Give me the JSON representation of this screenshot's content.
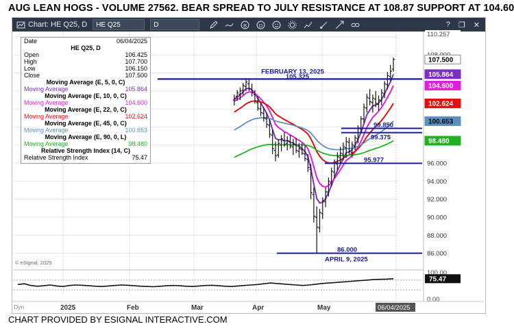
{
  "headline": "AUG LEAN HOGS -  VOLUME 27562.  BEAR SPREAD TO JULY RESISTANCE AT 108.87  SUPPORT AT 104.60",
  "footer": "CHART PROVIDED BY ESIGNAL INTERACTIVE.COM",
  "toolbar": {
    "title": "Chart: HE Q25, D",
    "symbol_value": "HE Q25",
    "period_value": "D",
    "right_items": [
      "?",
      "❐",
      "✕"
    ]
  },
  "data_window": {
    "date_label": "Date",
    "date_value": "06/04/2025",
    "symbol_line": "HE Q25, D",
    "ohlc": [
      {
        "label": "Open",
        "value": "106.425"
      },
      {
        "label": "High",
        "value": "107.700"
      },
      {
        "label": "Low",
        "value": "106.150"
      },
      {
        "label": "Close",
        "value": "107.500"
      }
    ],
    "studies": [
      {
        "header": "Moving Average (E, 5, 0, C)",
        "label": "Moving Average",
        "value": "105.864",
        "color": "#7b2fbe"
      },
      {
        "header": "Moving Average (E, 10, 0, C)",
        "label": "Moving Average",
        "value": "104.600",
        "color": "#e020d8"
      },
      {
        "header": "Moving Average (E, 22, 0, C)",
        "label": "Moving Average",
        "value": "102.624",
        "color": "#e01010"
      },
      {
        "header": "Moving Average (E, 45, 0, C)",
        "label": "Moving Average",
        "value": "100.653",
        "color": "#5a8fc0"
      },
      {
        "header": "Moving Average (E, 90, 0, L)",
        "label": "Moving Average",
        "value": "98.480",
        "color": "#20b020"
      },
      {
        "header": "Relative Strength Index (14, C)",
        "label": "Relative Strength Index",
        "value": "75.47",
        "color": "#000000"
      }
    ]
  },
  "chart_data": {
    "type": "candlestick",
    "title": "HE Q25, D",
    "x_tick_labels": [
      "2025",
      "Feb",
      "Mar",
      "Apr",
      "May",
      "06/04/2025"
    ],
    "ylim": [
      84.6,
      110.6
    ],
    "y_tick_labels": [
      "110.257",
      "108.000",
      "96.000",
      "94.000",
      "92.000",
      "90.000",
      "88.000",
      "86.000"
    ],
    "grid": true,
    "price_bars": [
      [
        103.0,
        103.6,
        102.4,
        103.2
      ],
      [
        103.4,
        104.1,
        102.9,
        103.8
      ],
      [
        103.6,
        104.4,
        103.0,
        104.0
      ],
      [
        104.1,
        104.9,
        103.6,
        104.6
      ],
      [
        104.5,
        105.3,
        104.0,
        105.0
      ],
      [
        104.8,
        105.3,
        104.0,
        104.3
      ],
      [
        104.2,
        104.8,
        103.4,
        103.8
      ],
      [
        103.6,
        104.1,
        102.6,
        102.9
      ],
      [
        102.7,
        103.4,
        101.8,
        102.1
      ],
      [
        102.0,
        102.7,
        101.2,
        101.6
      ],
      [
        101.5,
        102.2,
        100.6,
        101.0
      ],
      [
        100.9,
        101.6,
        99.9,
        100.3
      ],
      [
        100.2,
        100.8,
        98.8,
        99.2
      ],
      [
        99.1,
        99.7,
        97.0,
        97.6
      ],
      [
        97.4,
        98.4,
        96.2,
        96.8
      ],
      [
        96.9,
        98.6,
        96.6,
        98.2
      ],
      [
        98.0,
        99.1,
        97.3,
        98.7
      ],
      [
        98.5,
        99.4,
        97.8,
        98.1
      ],
      [
        98.2,
        99.0,
        97.4,
        98.5
      ],
      [
        98.4,
        99.2,
        97.6,
        97.9
      ],
      [
        97.8,
        98.7,
        96.9,
        98.1
      ],
      [
        98.0,
        98.8,
        97.1,
        97.4
      ],
      [
        97.3,
        98.2,
        96.6,
        97.6
      ],
      [
        97.5,
        98.2,
        96.9,
        97.1
      ],
      [
        97.0,
        98.0,
        96.2,
        96.5
      ],
      [
        96.4,
        97.0,
        95.0,
        95.5
      ],
      [
        95.3,
        95.9,
        92.0,
        92.7
      ],
      [
        92.5,
        93.3,
        89.4,
        90.1
      ],
      [
        90.0,
        91.2,
        86.0,
        88.9
      ],
      [
        88.8,
        90.9,
        88.3,
        90.5
      ],
      [
        90.4,
        92.2,
        89.8,
        91.8
      ],
      [
        91.7,
        93.3,
        91.1,
        92.8
      ],
      [
        92.8,
        94.4,
        92.3,
        94.0
      ],
      [
        93.9,
        95.5,
        93.4,
        95.1
      ],
      [
        95.0,
        96.4,
        94.3,
        96.0
      ],
      [
        95.9,
        97.2,
        95.2,
        96.7
      ],
      [
        96.6,
        97.8,
        95.9,
        97.1
      ],
      [
        97.0,
        98.3,
        96.3,
        97.8
      ],
      [
        97.7,
        98.9,
        96.6,
        98.4
      ],
      [
        98.3,
        98.8,
        97.0,
        97.3
      ],
      [
        97.2,
        98.4,
        96.6,
        98.0
      ],
      [
        97.9,
        99.1,
        97.4,
        98.8
      ],
      [
        98.7,
        100.2,
        98.2,
        99.9
      ],
      [
        99.8,
        101.2,
        99.3,
        100.9
      ],
      [
        100.9,
        102.6,
        100.4,
        102.2
      ],
      [
        102.1,
        103.7,
        101.6,
        103.3
      ],
      [
        103.2,
        104.2,
        102.4,
        102.8
      ],
      [
        102.7,
        103.6,
        101.6,
        103.2
      ],
      [
        103.1,
        104.0,
        102.2,
        102.6
      ],
      [
        102.5,
        103.5,
        101.8,
        103.0
      ],
      [
        102.9,
        104.2,
        102.4,
        103.8
      ],
      [
        103.7,
        105.1,
        103.2,
        104.8
      ],
      [
        104.7,
        106.1,
        104.2,
        105.7
      ],
      [
        105.6,
        106.9,
        105.1,
        106.2
      ],
      [
        106.425,
        107.7,
        106.15,
        107.5
      ]
    ],
    "series": [
      {
        "name": "Moving Average (E, 5, 0, C)",
        "color": "#7b2fbe",
        "last": 105.864
      },
      {
        "name": "Moving Average (E, 10, 0, C)",
        "color": "#e020d8",
        "last": 104.6
      },
      {
        "name": "Moving Average (E, 22, 0, C)",
        "color": "#e01010",
        "last": 102.624
      },
      {
        "name": "Moving Average (E, 45, 0, C)",
        "color": "#5a8fc0",
        "last": 100.653
      },
      {
        "name": "Moving Average (E, 90, 0, L)",
        "color": "#20b020",
        "last": 98.48
      }
    ],
    "price_labels": [
      {
        "value": 107.5,
        "text": "107.500",
        "bg": "#ffffff",
        "fg": "#000000"
      },
      {
        "value": 105.864,
        "text": "105.864",
        "bg": "#7b2fbe",
        "fg": "#ffffff"
      },
      {
        "value": 104.6,
        "text": "104.600",
        "bg": "#e020d8",
        "fg": "#ffffff"
      },
      {
        "value": 102.624,
        "text": "102.624",
        "bg": "#e01010",
        "fg": "#ffffff"
      },
      {
        "value": 100.653,
        "text": "100.653",
        "bg": "#5a8fc0",
        "fg": "#000000"
      },
      {
        "value": 98.48,
        "text": "98.480",
        "bg": "#20b020",
        "fg": "#ffffff"
      }
    ],
    "annotations": [
      {
        "text": "FEBRUARY 13, 2025",
        "value": 105.9
      },
      {
        "text": "105.325",
        "value": 105.325
      },
      {
        "text": "99.850",
        "value": 99.85
      },
      {
        "text": "99.375",
        "value": 99.375
      },
      {
        "text": "95.977",
        "value": 95.977
      },
      {
        "text": "86.000",
        "value": 86.0
      },
      {
        "text": "APRIL 9, 2025",
        "value": 85.5
      }
    ],
    "copyright": "© eSignal, 2025",
    "rsi": {
      "name": "Relative Strength Index (14, C)",
      "ylim": [
        0,
        100
      ],
      "y_tick_labels": [
        "100.00",
        "0.00"
      ],
      "last": 75.47,
      "last_text": "75.47",
      "values": [
        52,
        55,
        48,
        45,
        47,
        50,
        46,
        44,
        48,
        50,
        49,
        47,
        45,
        44,
        46,
        48,
        50,
        49,
        47,
        45,
        44,
        43,
        45,
        47,
        48,
        47,
        45,
        44,
        46,
        48,
        49,
        47,
        45,
        44,
        46,
        48,
        50,
        52,
        55,
        58,
        56,
        54,
        52,
        50,
        48,
        50,
        53,
        56,
        58,
        60,
        62,
        64,
        66,
        68,
        70,
        72,
        73,
        74,
        75.47
      ]
    },
    "dyn_label": "Dyn"
  }
}
